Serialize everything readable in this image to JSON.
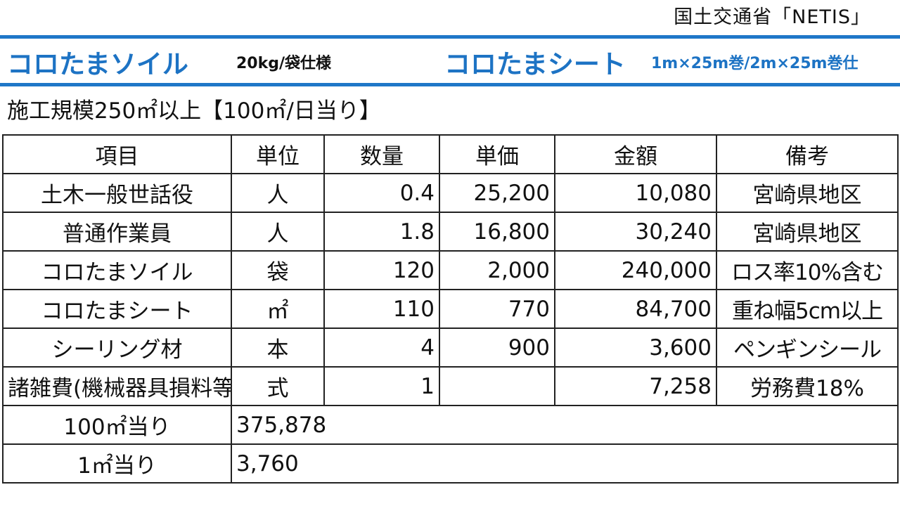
{
  "source": "国土交通省「NETIS」",
  "products": {
    "soil": {
      "name": "コロたまソイル",
      "spec": "20kg/袋仕様"
    },
    "sheet": {
      "name": "コロたまシート",
      "spec": "1m×25m巻/2m×25m巻仕"
    }
  },
  "scale_note": "施工規模250㎡以上【100㎡/日当り】",
  "table": {
    "headers": [
      "項目",
      "単位",
      "数量",
      "単価",
      "金額",
      "備考"
    ],
    "rows": [
      {
        "item": "土木一般世話役",
        "unit": "人",
        "qty": "0.4",
        "unit_price": "25,200",
        "amount": "10,080",
        "note": "宮崎県地区"
      },
      {
        "item": "普通作業員",
        "unit": "人",
        "qty": "1.8",
        "unit_price": "16,800",
        "amount": "30,240",
        "note": "宮崎県地区"
      },
      {
        "item": "コロたまソイル",
        "unit": "袋",
        "qty": "120",
        "unit_price": "2,000",
        "amount": "240,000",
        "note": "ロス率10%含む"
      },
      {
        "item": "コロたまシート",
        "unit": "㎡",
        "qty": "110",
        "unit_price": "770",
        "amount": "84,700",
        "note": "重ね幅5cm以上"
      },
      {
        "item": "シーリング材",
        "unit": "本",
        "qty": "4",
        "unit_price": "900",
        "amount": "3,600",
        "note": "ペンギンシール"
      },
      {
        "item": "諸雑費(機械器具損料等)",
        "unit": "式",
        "qty": "1",
        "unit_price": "",
        "amount": "7,258",
        "note": "労務費18%"
      }
    ],
    "totals": [
      {
        "label": "100㎡当り",
        "value": "375,878"
      },
      {
        "label": "1㎡当り",
        "value": "3,760"
      }
    ]
  },
  "colors": {
    "accent_blue": "#1d73c4",
    "rule_blue": "#1f77c8",
    "text": "#111111"
  }
}
